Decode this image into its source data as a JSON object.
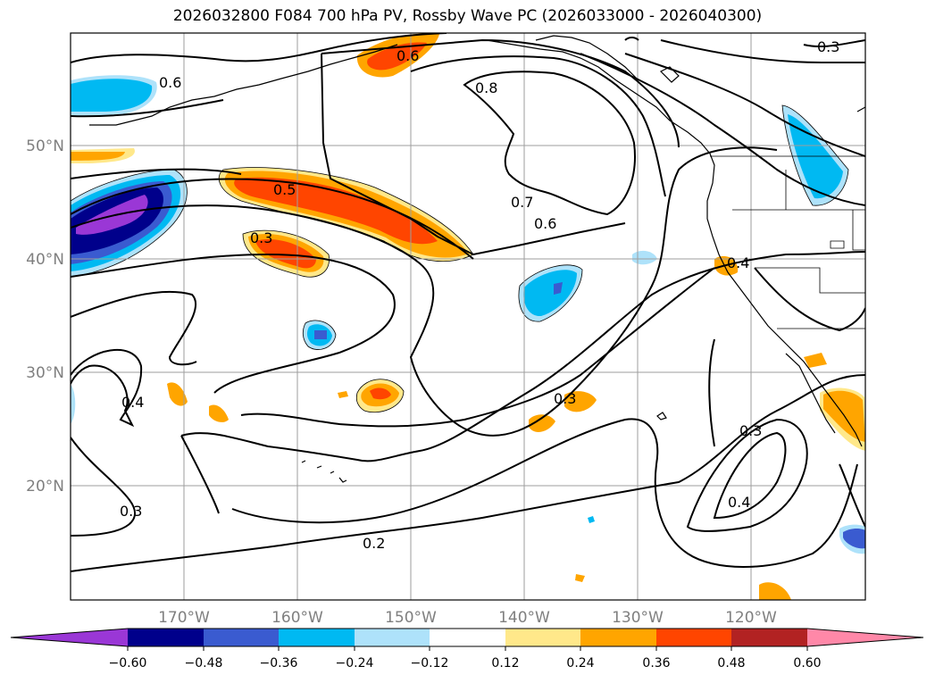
{
  "title": "2026032800 F084 700 hPa PV, Rossby Wave PC (2026033000 - 2026040300)",
  "map": {
    "lat_labels": [
      "50°N",
      "40°N",
      "30°N",
      "20°N"
    ],
    "lon_labels": [
      "170°W",
      "160°W",
      "150°W",
      "140°W",
      "130°W",
      "120°W"
    ],
    "contour_labels": [
      "0.6",
      "0.6",
      "0.8",
      "0.7",
      "0.6",
      "0.5",
      "0.3",
      "0.4",
      "0.4",
      "0.3",
      "0.3",
      "0.4",
      "0.3",
      "0.2",
      "0.3"
    ]
  },
  "colorbar": {
    "ticks": [
      "−0.60",
      "−0.48",
      "−0.36",
      "−0.24",
      "−0.12",
      "0.12",
      "0.24",
      "0.36",
      "0.48",
      "0.60"
    ],
    "colors": [
      "#9a37d6",
      "#00008b",
      "#3a5bd0",
      "#00b9f2",
      "#aee2fa",
      "#ffffff",
      "#ffe88a",
      "#ffa500",
      "#ff4500",
      "#b22222",
      "#ff88a8"
    ]
  }
}
